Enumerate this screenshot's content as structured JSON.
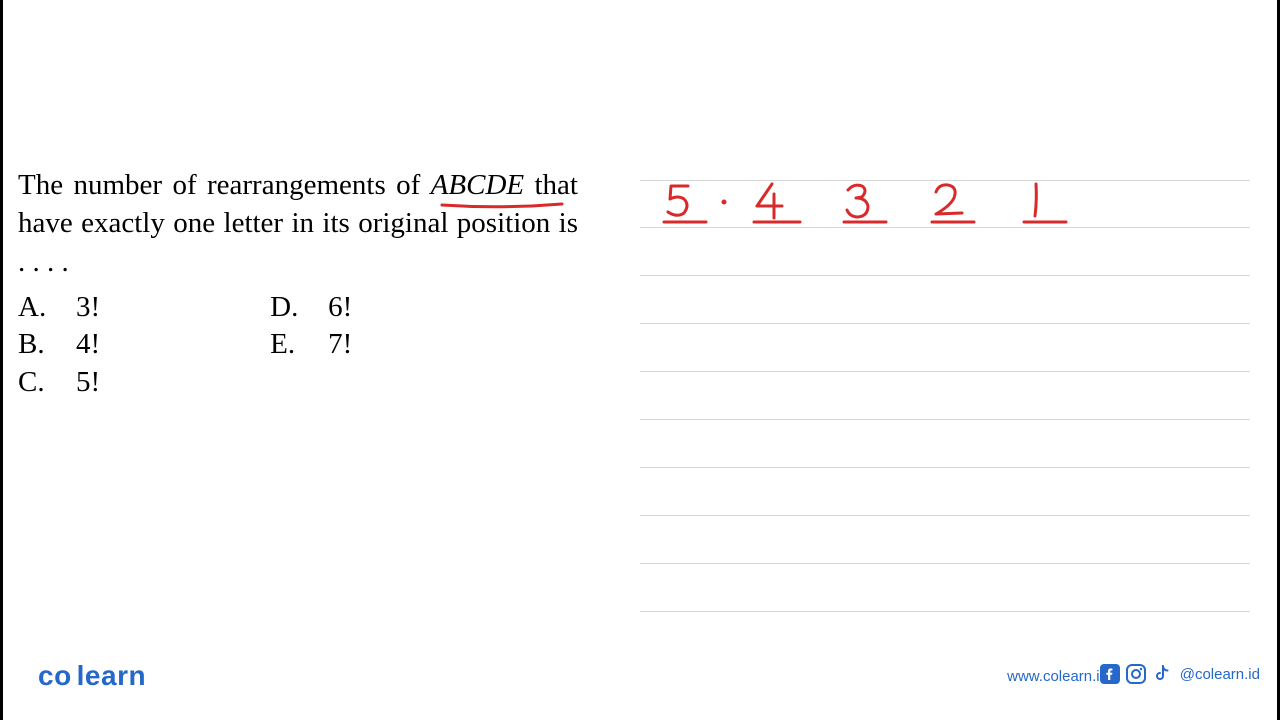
{
  "question": {
    "text_part1": "The number of rearrangements of ",
    "text_italic": "ABCDE",
    "text_part2": " that have exactly one letter in its original position is . . . .",
    "underline_color": "#d82a2a"
  },
  "options": {
    "col1": [
      {
        "letter": "A.",
        "value": "3!"
      },
      {
        "letter": "B.",
        "value": "4!"
      },
      {
        "letter": "C.",
        "value": "5!"
      }
    ],
    "col2": [
      {
        "letter": "D.",
        "value": "6!"
      },
      {
        "letter": "E.",
        "value": "7!"
      }
    ]
  },
  "handwriting": {
    "color": "#d82a2a",
    "digits": [
      "5",
      "4",
      "3",
      "2",
      "1"
    ],
    "dot_after_first": "·",
    "underline_width": 42,
    "spacing": 86
  },
  "ruled_lines": {
    "color": "#d6d6d6",
    "y_positions": [
      0,
      47,
      95,
      143,
      191,
      239,
      287,
      335,
      383,
      431
    ]
  },
  "footer": {
    "logo_co": "co",
    "logo_learn": "learn",
    "url": "www.colearn.id",
    "handle": "@colearn.id",
    "brand_color": "#2568c9"
  }
}
